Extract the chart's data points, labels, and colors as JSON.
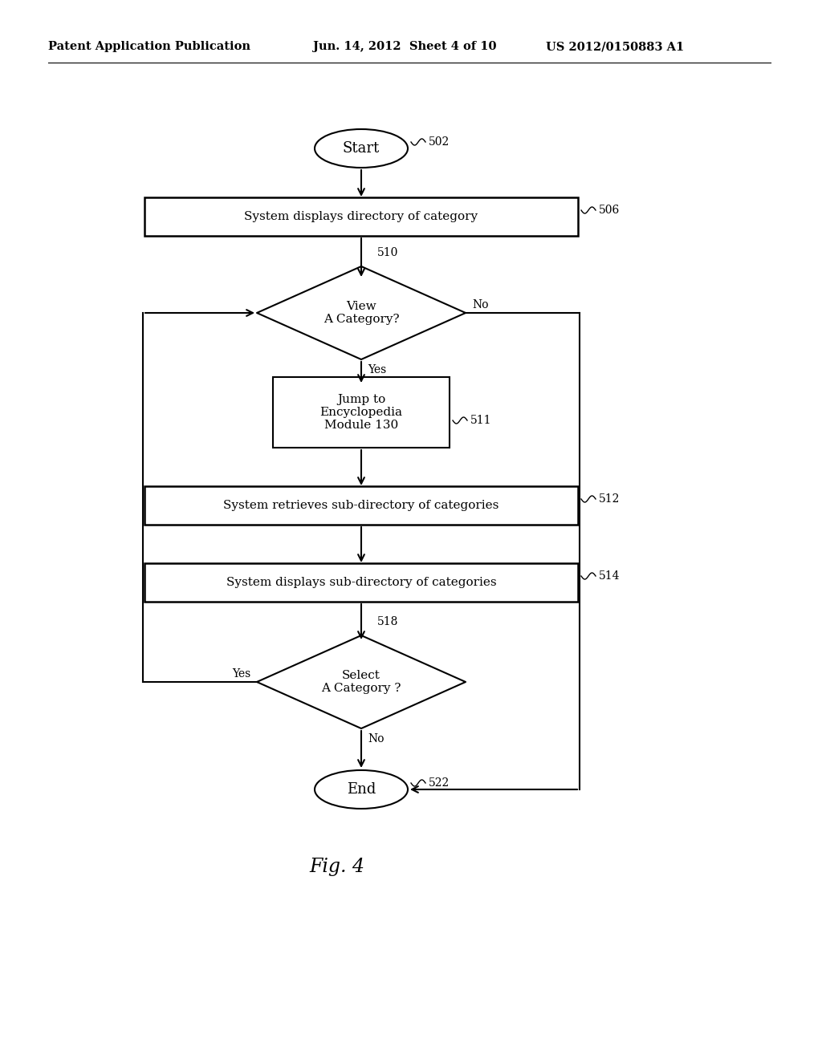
{
  "header_left": "Patent Application Publication",
  "header_mid": "Jun. 14, 2012  Sheet 4 of 10",
  "header_right": "US 2012/0150883 A1",
  "fig_label": "Fig. 4",
  "background_color": "#ffffff",
  "text_color": "#000000"
}
